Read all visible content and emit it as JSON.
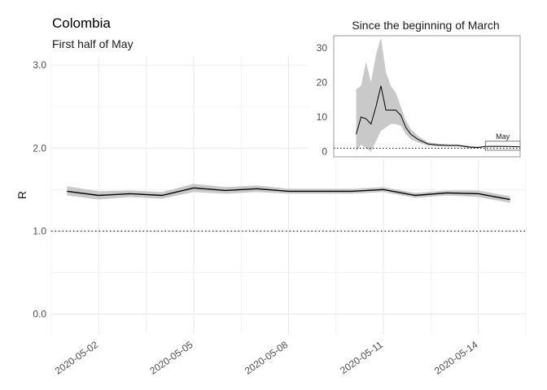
{
  "chart_data": [
    {
      "type": "line",
      "title": "Colombia",
      "subtitle": "First half of May",
      "xlabel": "",
      "ylabel": "R",
      "ylim": [
        -0.25,
        3.1
      ],
      "xlim": [
        "2020-05-01",
        "2020-05-15"
      ],
      "grid": true,
      "reference_line": 1.0,
      "y_ticks": [
        0.0,
        1.0,
        2.0,
        3.0
      ],
      "y_tick_labels": [
        "0.0",
        "1.0",
        "2.0",
        "3.0"
      ],
      "x_ticks": [
        "2020-05-02",
        "2020-05-05",
        "2020-05-08",
        "2020-05-11",
        "2020-05-14"
      ],
      "series": [
        {
          "x": [
            "2020-05-01",
            "2020-05-02",
            "2020-05-03",
            "2020-05-04",
            "2020-05-05",
            "2020-05-06",
            "2020-05-07",
            "2020-05-08",
            "2020-05-09",
            "2020-05-10",
            "2020-05-11",
            "2020-05-12",
            "2020-05-13",
            "2020-05-14",
            "2020-05-15"
          ],
          "values": [
            1.48,
            1.43,
            1.45,
            1.43,
            1.52,
            1.49,
            1.51,
            1.48,
            1.48,
            1.48,
            1.5,
            1.43,
            1.46,
            1.45,
            1.38
          ],
          "lower": [
            1.43,
            1.38,
            1.41,
            1.39,
            1.47,
            1.45,
            1.47,
            1.45,
            1.45,
            1.45,
            1.47,
            1.4,
            1.43,
            1.41,
            1.34
          ],
          "upper": [
            1.54,
            1.48,
            1.49,
            1.47,
            1.57,
            1.53,
            1.55,
            1.51,
            1.51,
            1.51,
            1.53,
            1.46,
            1.49,
            1.49,
            1.42
          ]
        }
      ],
      "colors": {
        "line": "#000000",
        "band": "#c9c9c9",
        "grid": "#ebebeb"
      }
    },
    {
      "type": "line",
      "title": "Since the beginning of March",
      "ylim": [
        -1.5,
        33.5
      ],
      "xlim": [
        "2020-03-01",
        "2020-05-15"
      ],
      "y_ticks": [
        0,
        10,
        20,
        30
      ],
      "y_tick_labels": [
        "0",
        "10",
        "20",
        "30"
      ],
      "reference_line": 1.0,
      "annotation": "May",
      "highlight_range": [
        "2020-05-01",
        "2020-05-15"
      ],
      "highlight_ylim": [
        0.4,
        3.0
      ],
      "series": [
        {
          "x": [
            "2020-03-10",
            "2020-03-12",
            "2020-03-14",
            "2020-03-16",
            "2020-03-18",
            "2020-03-20",
            "2020-03-22",
            "2020-03-24",
            "2020-03-26",
            "2020-03-28",
            "2020-03-30",
            "2020-04-01",
            "2020-04-04",
            "2020-04-08",
            "2020-04-12",
            "2020-04-16",
            "2020-04-20",
            "2020-04-25",
            "2020-04-28",
            "2020-05-01",
            "2020-05-05",
            "2020-05-10",
            "2020-05-15"
          ],
          "values": [
            5,
            10,
            9.5,
            8,
            13,
            19,
            12,
            12,
            12,
            10.5,
            7,
            5,
            3.5,
            2.2,
            1.9,
            1.8,
            1.8,
            1.3,
            1.2,
            1.48,
            1.52,
            1.48,
            1.38
          ],
          "lower": [
            0,
            2,
            1,
            0,
            3,
            6,
            7,
            8,
            8,
            7.5,
            5,
            3.6,
            2.6,
            1.7,
            1.5,
            1.5,
            1.5,
            1.0,
            0.9,
            1.43,
            1.47,
            1.45,
            1.34
          ],
          "upper": [
            18,
            19,
            26,
            20,
            28,
            33,
            23,
            19,
            17,
            13,
            9,
            6.5,
            4.5,
            2.7,
            2.3,
            2.1,
            2.1,
            1.6,
            1.5,
            1.54,
            1.57,
            1.51,
            1.42
          ]
        }
      ]
    }
  ]
}
